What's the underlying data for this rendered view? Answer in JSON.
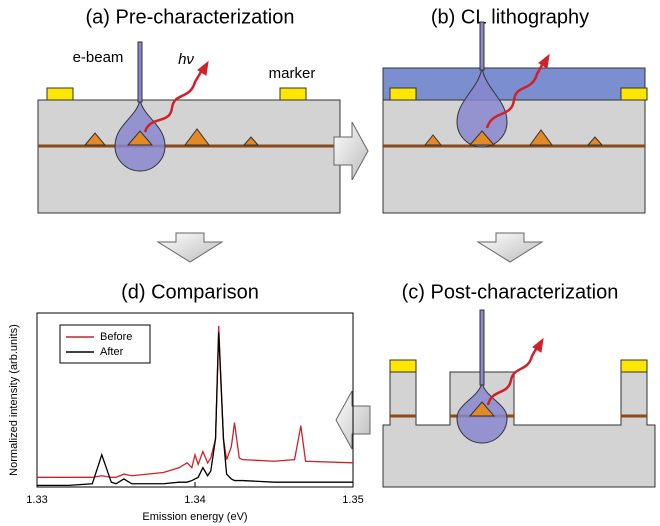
{
  "panels": [
    {
      "title": "(a) Pre-characterization",
      "labels": [
        "e-beam",
        "hν",
        "marker"
      ]
    },
    {
      "title": "(b) CL lithography"
    },
    {
      "title": "(c) Post-characterization"
    }
  ],
  "chart_data": {
    "type": "line",
    "title": "(d) Comparison",
    "x_label": "Emission energy (eV)",
    "y_label": "Normalized intensity (arb.units)",
    "x": [
      1.33,
      1.332,
      1.3335,
      1.3341,
      1.3347,
      1.335,
      1.3355,
      1.336,
      1.338,
      1.339,
      1.3395,
      1.3398,
      1.34,
      1.3402,
      1.3405,
      1.3408,
      1.341,
      1.3413,
      1.3415,
      1.3418,
      1.342,
      1.3423,
      1.3425,
      1.3428,
      1.343,
      1.345,
      1.3463,
      1.3467,
      1.347,
      1.35
    ],
    "series": [
      {
        "name": "Before",
        "color": "#d0202a",
        "values": [
          0.06,
          0.06,
          0.06,
          0.07,
          0.06,
          0.06,
          0.08,
          0.07,
          0.09,
          0.12,
          0.15,
          0.12,
          0.2,
          0.14,
          0.22,
          0.15,
          0.18,
          0.3,
          1.0,
          0.3,
          0.17,
          0.25,
          0.4,
          0.18,
          0.17,
          0.16,
          0.17,
          0.38,
          0.16,
          0.15
        ]
      },
      {
        "name": "After",
        "color": "#000000",
        "values": [
          0.01,
          0.01,
          0.02,
          0.2,
          0.03,
          0.02,
          0.05,
          0.02,
          0.02,
          0.03,
          0.03,
          0.04,
          0.05,
          0.06,
          0.12,
          0.07,
          0.1,
          0.3,
          0.96,
          0.3,
          0.08,
          0.05,
          0.04,
          0.04,
          0.04,
          0.03,
          0.03,
          0.03,
          0.03,
          0.03
        ]
      }
    ],
    "xlim": [
      1.33,
      1.35
    ],
    "xticks": [
      1.33,
      1.34,
      1.35
    ],
    "ylim": [
      0,
      1.08
    ],
    "legend": "upper-left"
  }
}
